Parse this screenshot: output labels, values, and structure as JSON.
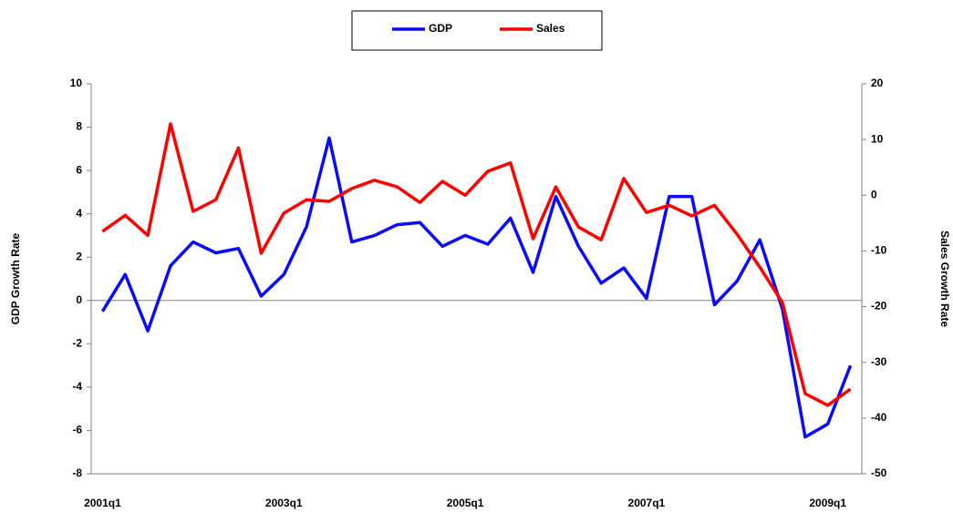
{
  "chart_data": {
    "type": "line",
    "categories": [
      "2001q1",
      null,
      null,
      null,
      null,
      null,
      null,
      null,
      "2003q1",
      null,
      null,
      null,
      null,
      null,
      null,
      null,
      "2005q1",
      null,
      null,
      null,
      null,
      null,
      null,
      null,
      "2007q1",
      null,
      null,
      null,
      null,
      null,
      null,
      null,
      "2009q1",
      null
    ],
    "series": [
      {
        "name": "GDP",
        "color": "#0a0aff",
        "values": [
          -0.5,
          1.2,
          -1.4,
          1.6,
          2.7,
          2.2,
          2.4,
          0.2,
          1.2,
          3.4,
          7.5,
          2.7,
          3.0,
          3.5,
          3.6,
          2.5,
          3.0,
          2.6,
          3.8,
          1.3,
          4.8,
          2.5,
          0.8,
          1.5,
          0.1,
          4.8,
          4.8,
          -0.2,
          0.9,
          2.8,
          -0.4,
          -6.3,
          -5.7,
          -3.0
        ]
      },
      {
        "name": "Sales",
        "color": "#ff0000",
        "axis": "y2",
        "values": [
          -6.5,
          -3.6,
          -7.2,
          12.8,
          -2.9,
          -0.8,
          8.5,
          -10.4,
          -3.2,
          -0.8,
          -1.1,
          1.2,
          2.7,
          1.5,
          -1.3,
          2.5,
          0.0,
          4.3,
          5.8,
          -7.8,
          1.5,
          -5.7,
          -8.0,
          3.0,
          -3.1,
          -1.8,
          -3.7,
          -1.8,
          -7.0,
          -12.9,
          -19.3,
          -35.6,
          -37.7,
          -34.8
        ]
      }
    ],
    "ylabel": "GDP Growth Rate",
    "y2label": "Sales Growth Rate",
    "ylim": [
      -8,
      10
    ],
    "yticks": [
      -8,
      -6,
      -4,
      -2,
      0,
      2,
      4,
      6,
      8,
      10
    ],
    "y2lim": [
      -50,
      20
    ],
    "y2ticks": [
      -50,
      -40,
      -30,
      -20,
      -10,
      0,
      10,
      20
    ],
    "grid": false,
    "legend": "top"
  }
}
